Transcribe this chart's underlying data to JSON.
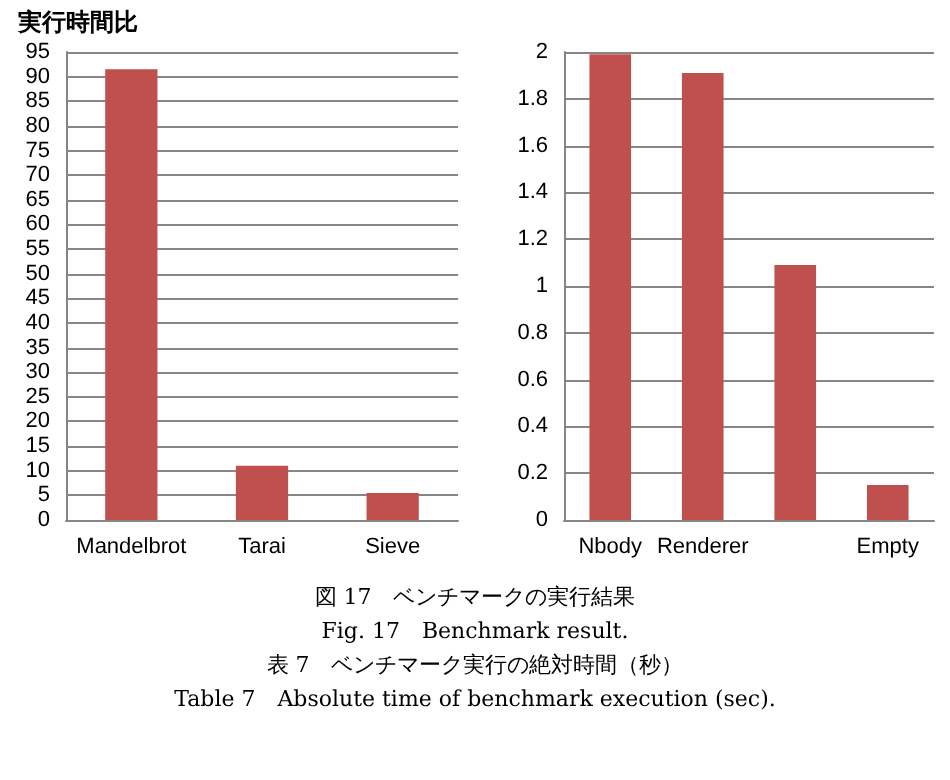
{
  "chart_data": [
    {
      "type": "bar",
      "title": "実行時間比",
      "categories": [
        "Mandelbrot",
        "Tarai",
        "Sieve"
      ],
      "values": [
        91.5,
        11,
        5.5
      ],
      "color": "#c0504d",
      "ylim": [
        0,
        95
      ],
      "yticks": [
        0,
        5,
        10,
        15,
        20,
        25,
        30,
        35,
        40,
        45,
        50,
        55,
        60,
        65,
        70,
        75,
        80,
        85,
        90,
        95
      ],
      "grid": "y",
      "annotations": [
        "図 17　ベンチマークの実行結果",
        "Fig. 17　Benchmark result.",
        "表 7　ベンチマーク実行の絶対時間（秒）",
        "Table 7　Absolute time of benchmark execution (sec)."
      ]
    },
    {
      "type": "bar",
      "categories": [
        "Nbody",
        "Renderer",
        null,
        "Empty"
      ],
      "values": [
        1.99,
        1.91,
        1.09,
        0.15
      ],
      "color": "#c0504d",
      "ylim": [
        0,
        2
      ],
      "yticks": [
        0,
        0.2,
        0.4,
        0.6,
        0.8,
        1,
        1.2,
        1.4,
        1.6,
        1.8,
        2
      ],
      "grid": "y"
    }
  ]
}
